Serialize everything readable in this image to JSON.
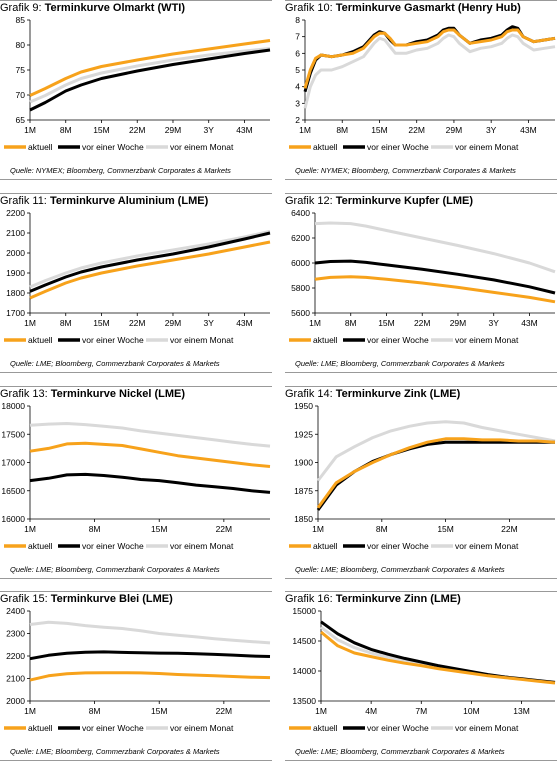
{
  "legend_colors": {
    "aktuell": "#f7a21b",
    "vor_einer_woche": "#000000",
    "vor_einem_monat": "#d9d9d9"
  },
  "panels": [
    {
      "grafik": "Grafik 9:",
      "title": "Terminkurve Olmarkt (WTI)",
      "source": "Quelle: NYMEX; Bloomberg, Commerzbank Corporates & Markets",
      "legend": [
        "aktuell",
        "vor einer Woche",
        "vor einem Monat"
      ]
    },
    {
      "grafik": "Grafik 10:",
      "title": "Terminkurve Gasmarkt (Henry Hub)",
      "source": "Quelle: NYMEX; Bloomberg, Commerzbank Corporates & Markets",
      "legend": [
        "aktuell",
        "vor einer Woche",
        "vor einem Monat"
      ]
    },
    {
      "grafik": "Grafik 11:",
      "title": "Terminkurve Aluminium (LME)",
      "source": "Quelle: LME; Bloomberg, Commerzbank Corporates & Markets",
      "legend": [
        "aktuell",
        "vor einer Woche",
        "vor einem Monat"
      ]
    },
    {
      "grafik": "Grafik 12:",
      "title": "Terminkurve Kupfer (LME)",
      "source": "Quelle: LME; Bloomberg, Commerzbank Corporates & Markets",
      "legend": [
        "aktuell",
        "vor einer Woche",
        "vor einem Monat"
      ]
    },
    {
      "grafik": "Grafik 13:",
      "title": "Terminkurve Nickel (LME)",
      "source": "Quelle: LME; Bloomberg, Commerzbank Corporates & Markets",
      "legend": [
        "aktuell",
        "vor einer Woche",
        "vor einem Monat"
      ]
    },
    {
      "grafik": "Grafik 14:",
      "title": "Terminkurve Zink (LME)",
      "source": "Quelle: LME; Bloomberg, Commerzbank Corporates & Markets",
      "legend": [
        "aktuell",
        "vor einer Woche",
        "vor einem Monat"
      ]
    },
    {
      "grafik": "Grafik 15:",
      "title": "Terminkurve Blei (LME)",
      "source": "Quelle: LME; Bloomberg, Commerzbank Corporates & Markets",
      "legend": [
        "aktuell",
        "vor einer Woche",
        "vor einem Monat"
      ]
    },
    {
      "grafik": "Grafik 16:",
      "title": "Terminkurve Zinn (LME)",
      "source": "Quelle: LME; Bloomberg, Commerzbank Corporates & Markets",
      "legend": [
        "aktuell",
        "vor einer Woche",
        "vor einem Monat"
      ]
    }
  ],
  "chart_data": [
    {
      "type": "line",
      "title": "Terminkurve Olmarkt (WTI)",
      "ylim": [
        65,
        85
      ],
      "yticks": [
        65,
        70,
        75,
        80,
        85
      ],
      "xlim": [
        1,
        48
      ],
      "xticks": [
        {
          "v": 1,
          "label": "1M"
        },
        {
          "v": 8,
          "label": "8M"
        },
        {
          "v": 15,
          "label": "15M"
        },
        {
          "v": 22,
          "label": "22M"
        },
        {
          "v": 29,
          "label": "29M"
        },
        {
          "v": 36,
          "label": "3Y"
        },
        {
          "v": 43,
          "label": "43M"
        }
      ],
      "x": [
        1,
        4,
        8,
        11,
        15,
        22,
        29,
        36,
        43,
        48
      ],
      "series": [
        {
          "name": "aktuell",
          "color": "#f7a21b",
          "values": [
            69.9,
            71.3,
            73.3,
            74.6,
            75.7,
            77.0,
            78.2,
            79.2,
            80.2,
            80.9
          ]
        },
        {
          "name": "vor einer Woche",
          "color": "#000000",
          "values": [
            67.0,
            68.5,
            70.8,
            72.0,
            73.3,
            74.8,
            76.1,
            77.2,
            78.3,
            79.0
          ]
        },
        {
          "name": "vor einem Monat",
          "color": "#d9d9d9",
          "values": [
            68.6,
            69.9,
            72.0,
            73.3,
            74.4,
            75.8,
            77.0,
            78.0,
            78.8,
            79.3
          ]
        }
      ]
    },
    {
      "type": "line",
      "title": "Terminkurve Gasmarkt (Henry Hub)",
      "ylim": [
        2,
        8
      ],
      "yticks": [
        2,
        3,
        4,
        5,
        6,
        7,
        8
      ],
      "xlim": [
        1,
        48
      ],
      "xticks": [
        {
          "v": 1,
          "label": "1M"
        },
        {
          "v": 8,
          "label": "8M"
        },
        {
          "v": 15,
          "label": "15M"
        },
        {
          "v": 22,
          "label": "22M"
        },
        {
          "v": 29,
          "label": "29M"
        },
        {
          "v": 36,
          "label": "3Y"
        },
        {
          "v": 43,
          "label": "43M"
        }
      ],
      "x": [
        1,
        2,
        3,
        4,
        6,
        8,
        10,
        12,
        14,
        15,
        16,
        17,
        18,
        20,
        22,
        24,
        26,
        27,
        28,
        29,
        30,
        32,
        34,
        36,
        38,
        39,
        40,
        41,
        42,
        44,
        46,
        48
      ],
      "series": [
        {
          "name": "aktuell",
          "color": "#f7a21b",
          "values": [
            3.9,
            5.0,
            5.7,
            5.9,
            5.8,
            5.9,
            6.0,
            6.3,
            7.0,
            7.2,
            7.2,
            6.9,
            6.5,
            6.5,
            6.6,
            6.7,
            7.0,
            7.3,
            7.4,
            7.4,
            7.1,
            6.6,
            6.7,
            6.8,
            7.0,
            7.3,
            7.4,
            7.4,
            7.0,
            6.7,
            6.8,
            6.9
          ]
        },
        {
          "name": "vor einer Woche",
          "color": "#000000",
          "values": [
            3.7,
            4.8,
            5.6,
            5.9,
            5.8,
            5.9,
            6.1,
            6.4,
            7.1,
            7.3,
            7.2,
            6.8,
            6.5,
            6.5,
            6.7,
            6.8,
            7.1,
            7.4,
            7.5,
            7.5,
            7.1,
            6.6,
            6.8,
            6.9,
            7.1,
            7.4,
            7.6,
            7.5,
            7.0,
            6.7,
            6.8,
            6.9
          ]
        },
        {
          "name": "vor einem Monat",
          "color": "#d9d9d9",
          "values": [
            2.7,
            4.0,
            4.7,
            5.0,
            5.0,
            5.2,
            5.5,
            5.8,
            6.6,
            6.9,
            6.8,
            6.4,
            6.0,
            6.0,
            6.2,
            6.3,
            6.6,
            6.9,
            7.1,
            7.0,
            6.6,
            6.1,
            6.3,
            6.4,
            6.6,
            6.9,
            7.1,
            7.0,
            6.6,
            6.2,
            6.3,
            6.4
          ]
        }
      ]
    },
    {
      "type": "line",
      "title": "Terminkurve Aluminium (LME)",
      "ylim": [
        1700,
        2200
      ],
      "yticks": [
        1700,
        1800,
        1900,
        2000,
        2100,
        2200
      ],
      "xlim": [
        1,
        48
      ],
      "xticks": [
        {
          "v": 1,
          "label": "1M"
        },
        {
          "v": 8,
          "label": "8M"
        },
        {
          "v": 15,
          "label": "15M"
        },
        {
          "v": 22,
          "label": "22M"
        },
        {
          "v": 29,
          "label": "29M"
        },
        {
          "v": 36,
          "label": "3Y"
        },
        {
          "v": 43,
          "label": "43M"
        }
      ],
      "x": [
        1,
        4,
        8,
        11,
        15,
        22,
        29,
        36,
        43,
        48
      ],
      "series": [
        {
          "name": "aktuell",
          "color": "#f7a21b",
          "values": [
            1775,
            1808,
            1850,
            1875,
            1900,
            1935,
            1965,
            1995,
            2030,
            2055
          ]
        },
        {
          "name": "vor einer Woche",
          "color": "#000000",
          "values": [
            1808,
            1840,
            1880,
            1905,
            1930,
            1965,
            1995,
            2030,
            2070,
            2100
          ]
        },
        {
          "name": "vor einem Monat",
          "color": "#d9d9d9",
          "values": [
            1830,
            1862,
            1900,
            1925,
            1950,
            1985,
            2015,
            2045,
            2080,
            2108
          ]
        }
      ]
    },
    {
      "type": "line",
      "title": "Terminkurve Kupfer (LME)",
      "ylim": [
        5600,
        6400
      ],
      "yticks": [
        5600,
        5800,
        6000,
        6200,
        6400
      ],
      "xlim": [
        1,
        48
      ],
      "xticks": [
        {
          "v": 1,
          "label": "1M"
        },
        {
          "v": 8,
          "label": "8M"
        },
        {
          "v": 15,
          "label": "15M"
        },
        {
          "v": 22,
          "label": "22M"
        },
        {
          "v": 29,
          "label": "29M"
        },
        {
          "v": 36,
          "label": "3Y"
        },
        {
          "v": 43,
          "label": "43M"
        }
      ],
      "x": [
        1,
        4,
        8,
        11,
        15,
        22,
        29,
        36,
        43,
        48
      ],
      "series": [
        {
          "name": "aktuell",
          "color": "#f7a21b",
          "values": [
            5870,
            5885,
            5890,
            5885,
            5870,
            5840,
            5805,
            5765,
            5725,
            5690
          ]
        },
        {
          "name": "vor einer Woche",
          "color": "#000000",
          "values": [
            6000,
            6012,
            6015,
            6005,
            5985,
            5950,
            5910,
            5865,
            5810,
            5760
          ]
        },
        {
          "name": "vor einem Monat",
          "color": "#d9d9d9",
          "values": [
            6315,
            6320,
            6315,
            6295,
            6260,
            6200,
            6140,
            6075,
            6000,
            5930
          ]
        }
      ]
    },
    {
      "type": "line",
      "title": "Terminkurve Nickel (LME)",
      "ylim": [
        16000,
        18000
      ],
      "yticks": [
        16000,
        16500,
        17000,
        17500,
        18000
      ],
      "xlim": [
        1,
        27
      ],
      "xticks": [
        {
          "v": 1,
          "label": "1M"
        },
        {
          "v": 8,
          "label": "8M"
        },
        {
          "v": 15,
          "label": "15M"
        },
        {
          "v": 22,
          "label": "22M"
        }
      ],
      "x": [
        1,
        3,
        5,
        7,
        9,
        11,
        13,
        15,
        17,
        19,
        21,
        23,
        25,
        27
      ],
      "series": [
        {
          "name": "aktuell",
          "color": "#f7a21b",
          "values": [
            17200,
            17250,
            17330,
            17340,
            17320,
            17300,
            17240,
            17180,
            17120,
            17080,
            17040,
            17000,
            16960,
            16930
          ]
        },
        {
          "name": "vor einer Woche",
          "color": "#000000",
          "values": [
            16680,
            16720,
            16780,
            16790,
            16770,
            16740,
            16700,
            16680,
            16640,
            16600,
            16570,
            16540,
            16500,
            16470
          ]
        },
        {
          "name": "vor einem Monat",
          "color": "#d9d9d9",
          "values": [
            17660,
            17680,
            17690,
            17670,
            17640,
            17610,
            17560,
            17520,
            17480,
            17440,
            17400,
            17360,
            17320,
            17290
          ]
        }
      ]
    },
    {
      "type": "line",
      "title": "Terminkurve Zink (LME)",
      "ylim": [
        1850,
        1950
      ],
      "yticks": [
        1850,
        1875,
        1900,
        1925,
        1950
      ],
      "xlim": [
        1,
        27
      ],
      "xticks": [
        {
          "v": 1,
          "label": "1M"
        },
        {
          "v": 8,
          "label": "8M"
        },
        {
          "v": 15,
          "label": "15M"
        },
        {
          "v": 22,
          "label": "22M"
        }
      ],
      "x": [
        1,
        3,
        5,
        7,
        9,
        11,
        13,
        15,
        17,
        19,
        21,
        23,
        25,
        27
      ],
      "series": [
        {
          "name": "aktuell",
          "color": "#f7a21b",
          "values": [
            1860,
            1882,
            1892,
            1900,
            1907,
            1913,
            1918,
            1921,
            1921,
            1920,
            1920,
            1919,
            1919,
            1918
          ]
        },
        {
          "name": "vor einer Woche",
          "color": "#000000",
          "values": [
            1858,
            1880,
            1892,
            1901,
            1907,
            1912,
            1916,
            1918,
            1918,
            1918,
            1918,
            1918,
            1918,
            1918
          ]
        },
        {
          "name": "vor einem Monat",
          "color": "#d9d9d9",
          "values": [
            1884,
            1905,
            1914,
            1922,
            1928,
            1932,
            1935,
            1936,
            1935,
            1931,
            1928,
            1925,
            1922,
            1919
          ]
        }
      ]
    },
    {
      "type": "line",
      "title": "Terminkurve Blei (LME)",
      "ylim": [
        2000,
        2400
      ],
      "yticks": [
        2000,
        2100,
        2200,
        2300,
        2400
      ],
      "xlim": [
        1,
        27
      ],
      "xticks": [
        {
          "v": 1,
          "label": "1M"
        },
        {
          "v": 8,
          "label": "8M"
        },
        {
          "v": 15,
          "label": "15M"
        },
        {
          "v": 22,
          "label": "22M"
        }
      ],
      "x": [
        1,
        3,
        5,
        7,
        9,
        11,
        13,
        15,
        17,
        19,
        21,
        23,
        25,
        27
      ],
      "series": [
        {
          "name": "aktuell",
          "color": "#f7a21b",
          "values": [
            2093,
            2112,
            2121,
            2125,
            2126,
            2126,
            2125,
            2122,
            2118,
            2115,
            2112,
            2109,
            2106,
            2104
          ]
        },
        {
          "name": "vor einer Woche",
          "color": "#000000",
          "values": [
            2188,
            2203,
            2212,
            2217,
            2218,
            2216,
            2214,
            2213,
            2212,
            2210,
            2207,
            2204,
            2200,
            2198
          ]
        },
        {
          "name": "vor einem Monat",
          "color": "#d9d9d9",
          "values": [
            2340,
            2350,
            2345,
            2335,
            2328,
            2322,
            2312,
            2300,
            2292,
            2285,
            2277,
            2270,
            2264,
            2258
          ]
        }
      ]
    },
    {
      "type": "line",
      "title": "Terminkurve Zinn (LME)",
      "ylim": [
        13500,
        15000
      ],
      "yticks": [
        13500,
        14000,
        14500,
        15000
      ],
      "xlim": [
        1,
        15
      ],
      "xticks": [
        {
          "v": 1,
          "label": "1M"
        },
        {
          "v": 4,
          "label": "4M"
        },
        {
          "v": 7,
          "label": "7M"
        },
        {
          "v": 10,
          "label": "10M"
        },
        {
          "v": 13,
          "label": "13M"
        }
      ],
      "x": [
        1,
        2,
        3,
        4,
        5,
        6,
        7,
        8,
        9,
        10,
        11,
        12,
        13,
        14,
        15
      ],
      "series": [
        {
          "name": "aktuell",
          "color": "#f7a21b",
          "values": [
            14650,
            14420,
            14300,
            14240,
            14180,
            14130,
            14090,
            14040,
            14000,
            13960,
            13920,
            13890,
            13860,
            13830,
            13800
          ]
        },
        {
          "name": "vor einer Woche",
          "color": "#000000",
          "values": [
            14820,
            14620,
            14470,
            14360,
            14280,
            14210,
            14150,
            14090,
            14040,
            13990,
            13940,
            13900,
            13870,
            13840,
            13810
          ]
        },
        {
          "name": "vor einem Monat",
          "color": "#d9d9d9",
          "values": [
            14730,
            14520,
            14390,
            14300,
            14230,
            14170,
            14120,
            14070,
            14020,
            13980,
            13940,
            13900,
            13870,
            13840,
            13810
          ]
        }
      ]
    }
  ]
}
